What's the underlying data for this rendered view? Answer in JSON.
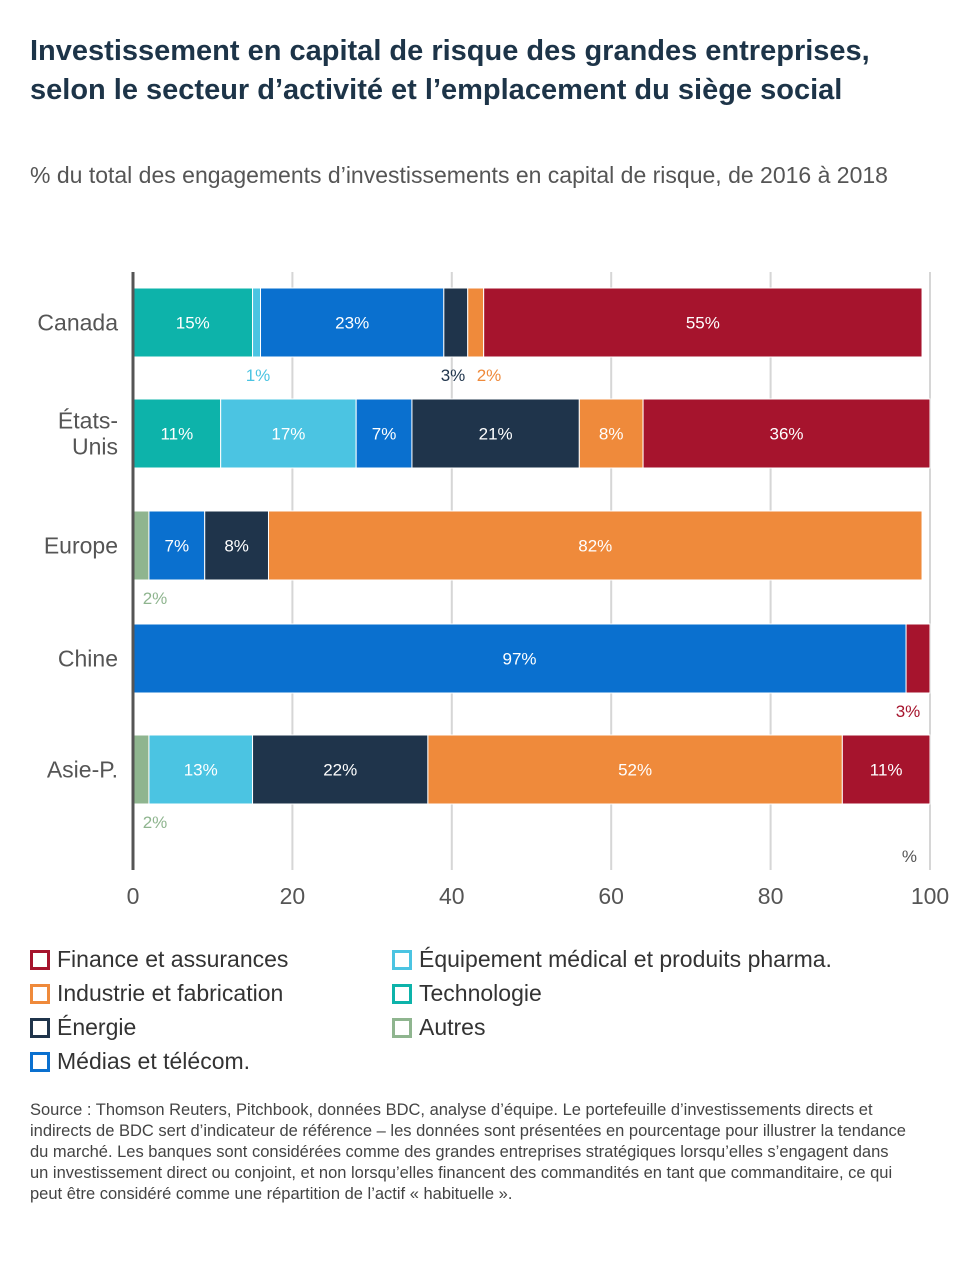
{
  "title": "Investissement en capital de risque des grandes entreprises, selon le secteur d’activité et l’emplacement du siège social",
  "subtitle": "% du total des engagements d’investissements en capital de risque, de 2016 à 2018",
  "source": "Source : Thomson Reuters, Pitchbook, données BDC, analyse d’équipe. Le portefeuille d’investissements directs et indirects de BDC sert d’indicateur de référence – les données sont présentées en pourcentage pour illustrer la tendance du marché. Les banques sont considérées comme des grandes entreprises stratégiques lorsqu’elles s’engagent dans un investissement direct ou conjoint, et non lorsqu’elles financent des commandités en tant que commanditaire, ce qui peut être considéré comme une répartition de l’actif « habituelle ».",
  "legend": [
    {
      "label": "Finance et assurances",
      "color": "#a6142d"
    },
    {
      "label": "Équipement médical et produits pharma.",
      "color": "#4bc4e2"
    },
    {
      "label": "Industrie et fabrication",
      "color": "#ef8a3b"
    },
    {
      "label": "Technologie",
      "color": "#0db3aa"
    },
    {
      "label": "Énergie",
      "color": "#1f344b"
    },
    {
      "label": "Autres",
      "color": "#8fb58f"
    },
    {
      "label": "Médias et télécom.",
      "color": "#0a70cf"
    }
  ],
  "chart_data": {
    "type": "bar",
    "orientation": "horizontal",
    "stacked": true,
    "categories": [
      "Canada",
      "États-\nUnis",
      "Europe",
      "Chine",
      "Asie-P."
    ],
    "xlim": [
      0,
      100
    ],
    "xticks": [
      0,
      20,
      40,
      60,
      80,
      100
    ],
    "x_unit": "%",
    "grid": true,
    "legend_position": "bottom",
    "series": [
      {
        "name": "Autres",
        "color": "#8fb58f",
        "values": [
          0,
          0,
          2,
          0,
          2
        ],
        "labels": [
          "",
          "",
          "2%",
          "",
          "2%"
        ]
      },
      {
        "name": "Technologie",
        "color": "#0db3aa",
        "values": [
          15,
          11,
          0,
          0,
          0
        ],
        "labels": [
          "15%",
          "11%",
          "",
          "",
          ""
        ]
      },
      {
        "name": "Équipement médical et produits pharma.",
        "color": "#4bc4e2",
        "values": [
          1,
          17,
          0,
          0,
          13
        ],
        "labels": [
          "1%",
          "17%",
          "",
          "",
          "13%"
        ]
      },
      {
        "name": "Médias et télécom.",
        "color": "#0a70cf",
        "values": [
          23,
          7,
          7,
          97,
          0
        ],
        "labels": [
          "23%",
          "7%",
          "7%",
          "97%",
          ""
        ]
      },
      {
        "name": "Énergie",
        "color": "#1f344b",
        "values": [
          3,
          21,
          8,
          0,
          22
        ],
        "labels": [
          "3%",
          "21%",
          "8%",
          "",
          "22%"
        ]
      },
      {
        "name": "Industrie et fabrication",
        "color": "#ef8a3b",
        "values": [
          2,
          8,
          82,
          0,
          52
        ],
        "labels": [
          "2%",
          "8%",
          "82%",
          "",
          "52%"
        ]
      },
      {
        "name": "Finance et assurances",
        "color": "#a6142d",
        "values": [
          55,
          36,
          0,
          3,
          11
        ],
        "labels": [
          "55%",
          "36%",
          "",
          "3%",
          "11%"
        ]
      }
    ],
    "outside_labels": [
      {
        "row": 0,
        "series": "Équipement médical et produits pharma.",
        "text": "1%"
      },
      {
        "row": 0,
        "series": "Énergie",
        "text": "3%"
      },
      {
        "row": 0,
        "series": "Industrie et fabrication",
        "text": "2%"
      },
      {
        "row": 2,
        "series": "Autres",
        "text": "2%"
      },
      {
        "row": 3,
        "series": "Finance et assurances",
        "text": "3%"
      },
      {
        "row": 4,
        "series": "Autres",
        "text": "2%"
      }
    ]
  }
}
